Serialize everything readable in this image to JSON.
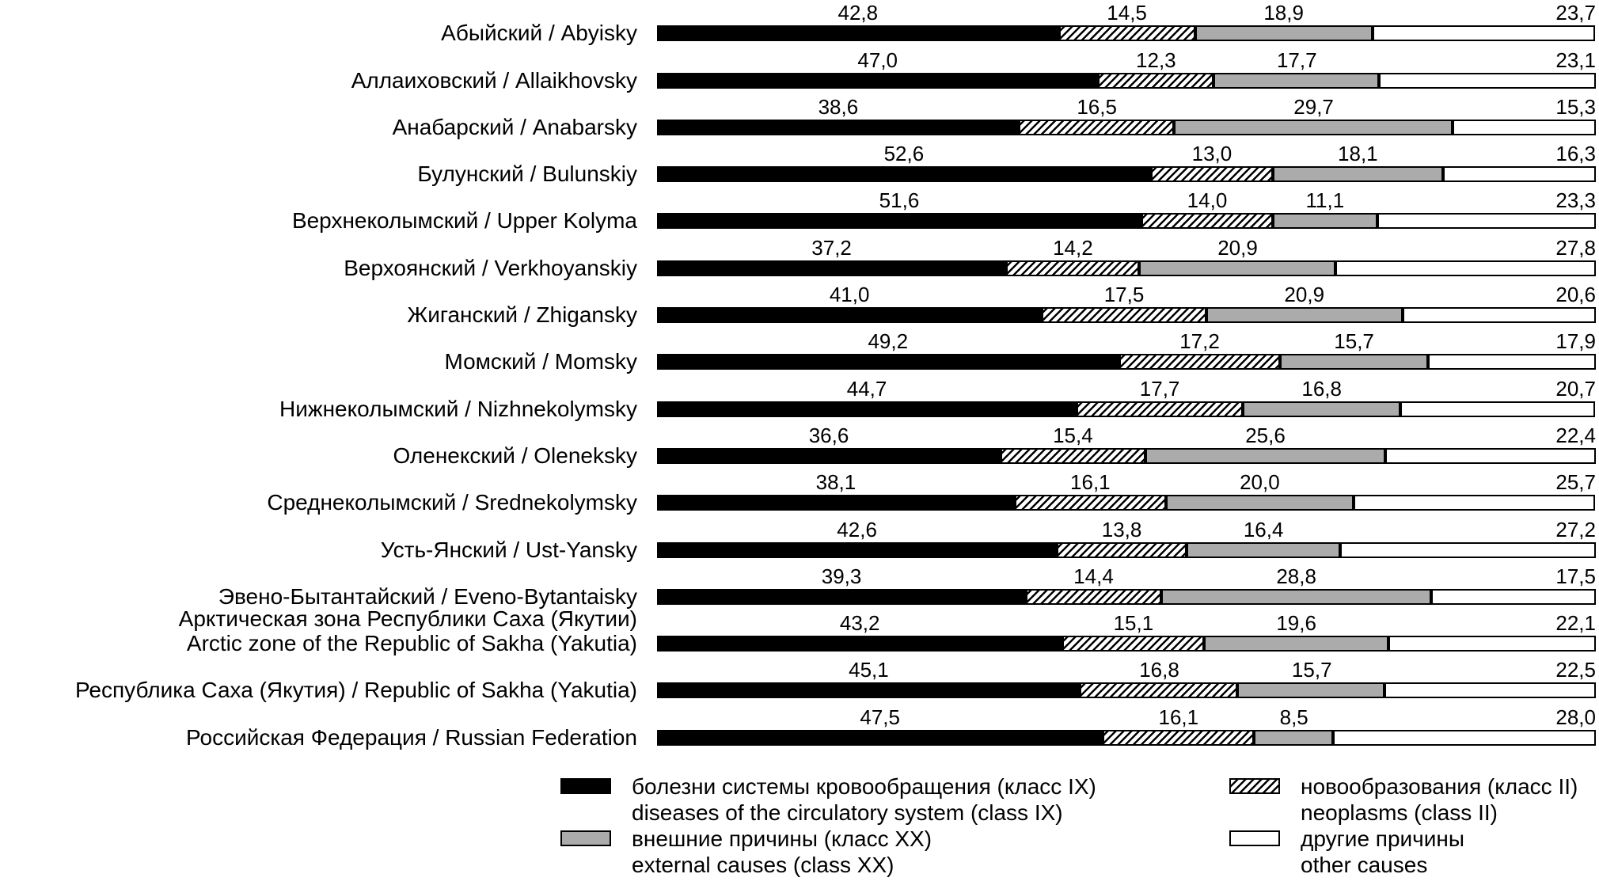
{
  "chart_data": {
    "type": "bar",
    "variant": "horizontal_stacked_100_percent",
    "unit": "%",
    "decimal_separator": ",",
    "grid": false,
    "axes_shown": false,
    "value_labels_position": "above segments, last value right-aligned to bar end",
    "series": [
      {
        "key": "circulatory",
        "fill": "solid-black",
        "color": "#000000",
        "label_ru": "болезни системы кровообращения (класс IX)",
        "label_en": "diseases of the circulatory system (class IX)"
      },
      {
        "key": "neoplasms",
        "fill": "diagonal-hatch",
        "color": "#000000",
        "label_ru": "новообразования (класс II)",
        "label_en": "neoplasms (class II)"
      },
      {
        "key": "external",
        "fill": "solid-gray",
        "color": "#ababab",
        "label_ru": "внешние причины (класс XX)",
        "label_en": "external causes (class XX)"
      },
      {
        "key": "other",
        "fill": "white",
        "color": "#ffffff",
        "label_ru": "другие причины",
        "label_en": "other causes"
      }
    ],
    "rows": [
      {
        "label_lines": [
          "Абыйский / Abyisky"
        ],
        "values": [
          42.8,
          14.5,
          18.9,
          23.7
        ]
      },
      {
        "label_lines": [
          "Аллаиховский / Allaikhovsky"
        ],
        "values": [
          47.0,
          12.3,
          17.7,
          23.1
        ]
      },
      {
        "label_lines": [
          "Анабарский / Anabarsky"
        ],
        "values": [
          38.6,
          16.5,
          29.7,
          15.3
        ]
      },
      {
        "label_lines": [
          "Булунский / Bulunskiy"
        ],
        "values": [
          52.6,
          13.0,
          18.1,
          16.3
        ]
      },
      {
        "label_lines": [
          "Верхнеколымский / Upper Kolyma"
        ],
        "values": [
          51.6,
          14.0,
          11.1,
          23.3
        ]
      },
      {
        "label_lines": [
          "Верхоянский / Verkhoyanskiy"
        ],
        "values": [
          37.2,
          14.2,
          20.9,
          27.8
        ]
      },
      {
        "label_lines": [
          "Жиганский / Zhigansky"
        ],
        "values": [
          41.0,
          17.5,
          20.9,
          20.6
        ]
      },
      {
        "label_lines": [
          "Момский / Momsky"
        ],
        "values": [
          49.2,
          17.2,
          15.7,
          17.9
        ]
      },
      {
        "label_lines": [
          "Нижнеколымский / Nizhnekolymsky"
        ],
        "values": [
          44.7,
          17.7,
          16.8,
          20.7
        ]
      },
      {
        "label_lines": [
          "Оленекский / Oleneksky"
        ],
        "values": [
          36.6,
          15.4,
          25.6,
          22.4
        ]
      },
      {
        "label_lines": [
          "Среднеколымский / Srednekolymsky"
        ],
        "values": [
          38.1,
          16.1,
          20.0,
          25.7
        ]
      },
      {
        "label_lines": [
          "Усть-Янский / Ust-Yansky"
        ],
        "values": [
          42.6,
          13.8,
          16.4,
          27.2
        ]
      },
      {
        "label_lines": [
          "Эвено-Бытантайский / Eveno-Bytantaisky"
        ],
        "values": [
          39.3,
          14.4,
          28.8,
          17.5
        ]
      },
      {
        "label_lines": [
          "Арктическая зона Республики Саха (Якутии)",
          "Arctic zone of the Republic of Sakha (Yakutia)"
        ],
        "values": [
          43.2,
          15.1,
          19.6,
          22.1
        ]
      },
      {
        "label_lines": [
          "Республика Саха (Якутия) / Republic of Sakha (Yakutia)"
        ],
        "values": [
          45.1,
          16.8,
          15.7,
          22.5
        ]
      },
      {
        "label_lines": [
          "Российская Федерация / Russian Federation"
        ],
        "values": [
          47.5,
          16.1,
          8.5,
          28.0
        ]
      }
    ],
    "legend": {
      "column1": [
        {
          "swatch": "black",
          "lines": [
            "болезни системы кровообращения (класс IX)",
            "diseases of the circulatory system (class IX)"
          ]
        },
        {
          "swatch": "gray",
          "lines": [
            "внешние причины (класс XX)",
            "external causes (class XX)"
          ]
        }
      ],
      "column2": [
        {
          "swatch": "hatched",
          "lines": [
            "новообразования (класс II)",
            "neoplasms (class II)"
          ]
        },
        {
          "swatch": "white",
          "lines": [
            "другие причины",
            "other causes"
          ]
        }
      ]
    }
  }
}
